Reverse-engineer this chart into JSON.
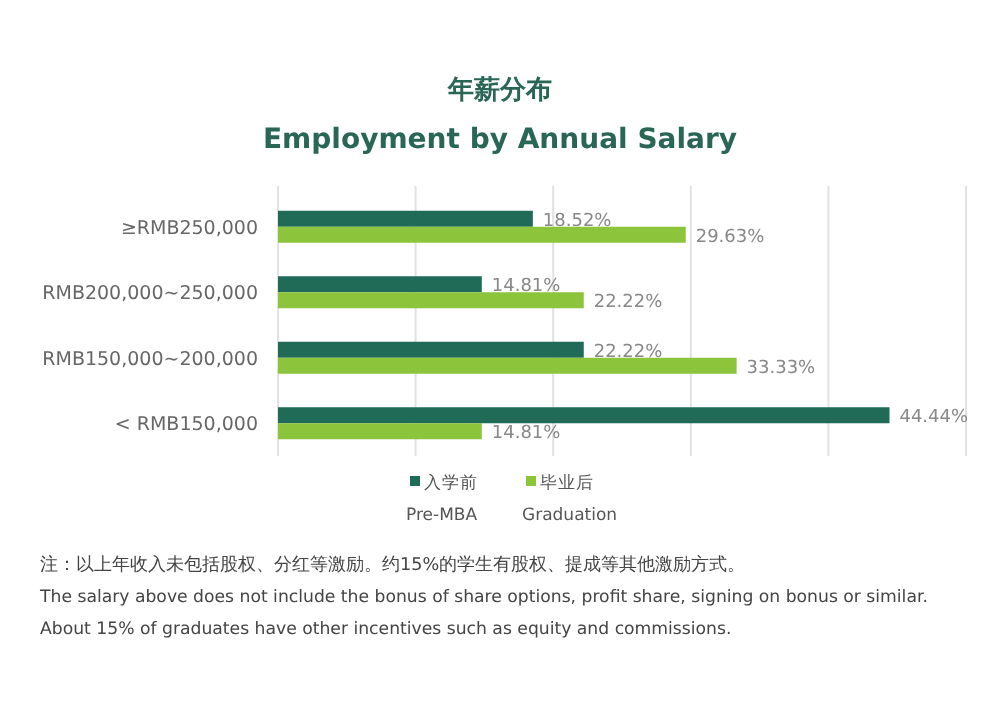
{
  "chart_data": {
    "type": "bar",
    "orientation": "horizontal",
    "title": "年薪分布",
    "subtitle": "Employment by Annual Salary",
    "categories": [
      "≥RMB250,000",
      "RMB200,000~250,000",
      "RMB150,000~200,000",
      "< RMB150,000"
    ],
    "series": [
      {
        "name": "入学前\nPre-MBA",
        "color": "#1f6b58",
        "values": [
          18.52,
          14.81,
          22.22,
          44.44
        ],
        "value_labels": [
          "18.52%",
          "14.81%",
          "22.22%",
          "44.44%"
        ]
      },
      {
        "name": "毕业后\nGraduation",
        "color": "#8cc43c",
        "values": [
          29.63,
          22.22,
          33.33,
          14.81
        ],
        "value_labels": [
          "29.63%",
          "22.22%",
          "33.33%",
          "14.81%"
        ]
      }
    ],
    "xlim": [
      0,
      50
    ],
    "xticks": [
      {
        "value": 0,
        "label": null
      },
      {
        "value": 10,
        "label": null
      },
      {
        "value": 20,
        "label": null
      },
      {
        "value": 30,
        "label": null
      },
      {
        "value": 40,
        "label": null
      },
      {
        "value": 50,
        "label": null
      }
    ],
    "grid": "x",
    "tick_labels": "y",
    "legend": "bottom",
    "annotations": [
      "注：以上年收入未包括股权、分红等激励。约15%的学生有股权、提成等其他激励方式。",
      "The salary above does not include the bonus of share options, profit share, signing on bonus or similar.",
      "About 15% of graduates have other incentives such as equity and commissions."
    ]
  }
}
